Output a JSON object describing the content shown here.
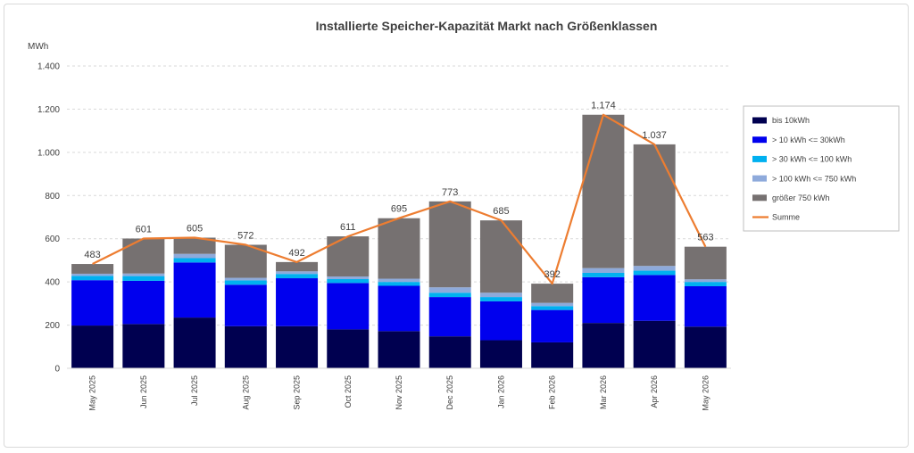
{
  "chart_data": {
    "type": "bar",
    "stacked": true,
    "title": "Installierte Speicher-Kapazität Markt nach Größenklassen",
    "ylabel": "MWh",
    "ylim": [
      0,
      1400
    ],
    "yticks": [
      0,
      200,
      400,
      600,
      800,
      1000,
      1200,
      1400
    ],
    "ytick_labels": [
      "0",
      "200",
      "400",
      "600",
      "800",
      "1.000",
      "1.200",
      "1.400"
    ],
    "grid": true,
    "legend_position": "right",
    "categories": [
      "May 2025",
      "Jun 2025",
      "Jul 2025",
      "Aug 2025",
      "Sep 2025",
      "Oct 2025",
      "Nov 2025",
      "Dec 2025",
      "Jan 2026",
      "Feb 2026",
      "Mar 2026",
      "Apr 2026",
      "May 2026"
    ],
    "series": [
      {
        "name": "bis 10kWh",
        "color": "#000050",
        "values": [
          198,
          205,
          235,
          195,
          195,
          180,
          172,
          148,
          130,
          120,
          210,
          220,
          193
        ]
      },
      {
        "name": "> 10 kWh <= 30kWh",
        "color": "#0000ee",
        "values": [
          210,
          200,
          255,
          192,
          222,
          215,
          210,
          182,
          180,
          150,
          212,
          212,
          187
        ]
      },
      {
        "name": "> 30 kWh <= 100 kWh",
        "color": "#00b0f0",
        "values": [
          20,
          22,
          20,
          20,
          20,
          18,
          18,
          20,
          20,
          18,
          20,
          20,
          20
        ]
      },
      {
        "name": "> 100 kWh <= 750 kWh",
        "color": "#8eaadb",
        "values": [
          10,
          12,
          20,
          12,
          12,
          12,
          15,
          25,
          20,
          15,
          22,
          22,
          12
        ]
      },
      {
        "name": "größer 750 kWh",
        "color": "#767171",
        "values": [
          45,
          162,
          75,
          153,
          43,
          186,
          280,
          398,
          335,
          89,
          710,
          563,
          151
        ]
      }
    ],
    "line": {
      "name": "Summe",
      "color": "#ed7d31",
      "values": [
        483,
        601,
        605,
        572,
        492,
        611,
        695,
        773,
        685,
        392,
        1174,
        1037,
        563
      ]
    },
    "data_labels": [
      "483",
      "601",
      "605",
      "572",
      "492",
      "611",
      "695",
      "773",
      "685",
      "392",
      "1.174",
      "1.037",
      "563"
    ]
  }
}
